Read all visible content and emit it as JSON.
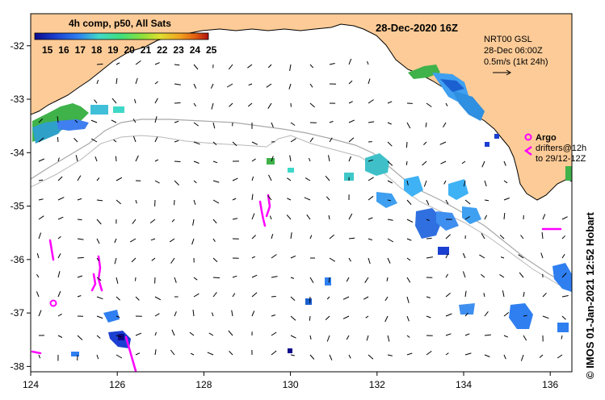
{
  "header": {
    "title": "28-Dec-2020 16Z",
    "colorbar_title": "4h comp, p50, All Sats",
    "colorbar_ticks": [
      "15",
      "16",
      "17",
      "18",
      "19",
      "20",
      "21",
      "22",
      "23",
      "24",
      "25"
    ]
  },
  "current_key": {
    "line1": "NRT00 GSL",
    "line2": "28-Dec 06:00Z",
    "line3": "0.5m/s (1kt 24h)"
  },
  "argo": {
    "label": "Argo",
    "drifters_line1": "drifters@12h",
    "drifters_line2": "to 29/12-12Z"
  },
  "axes": {
    "x_ticks": [
      "124",
      "126",
      "128",
      "130",
      "132",
      "134",
      "136"
    ],
    "y_ticks": [
      "-32",
      "-33",
      "-34",
      "-35",
      "-36",
      "-37",
      "-38"
    ]
  },
  "credit": "© IMOS 01-Jan-2021 12:52 Hobart",
  "colors": {
    "land": "#fccb97",
    "ocean": "#ffffff",
    "argo": "#ff00ff",
    "isobath": "#a8a8a8",
    "colormap": [
      "#0b0b8c",
      "#1b3fd0",
      "#2f7ff0",
      "#3fb2f5",
      "#3fd8c8",
      "#3fe07a",
      "#8ee03a",
      "#e0e030",
      "#f0a020",
      "#e05a10",
      "#b01010"
    ]
  }
}
